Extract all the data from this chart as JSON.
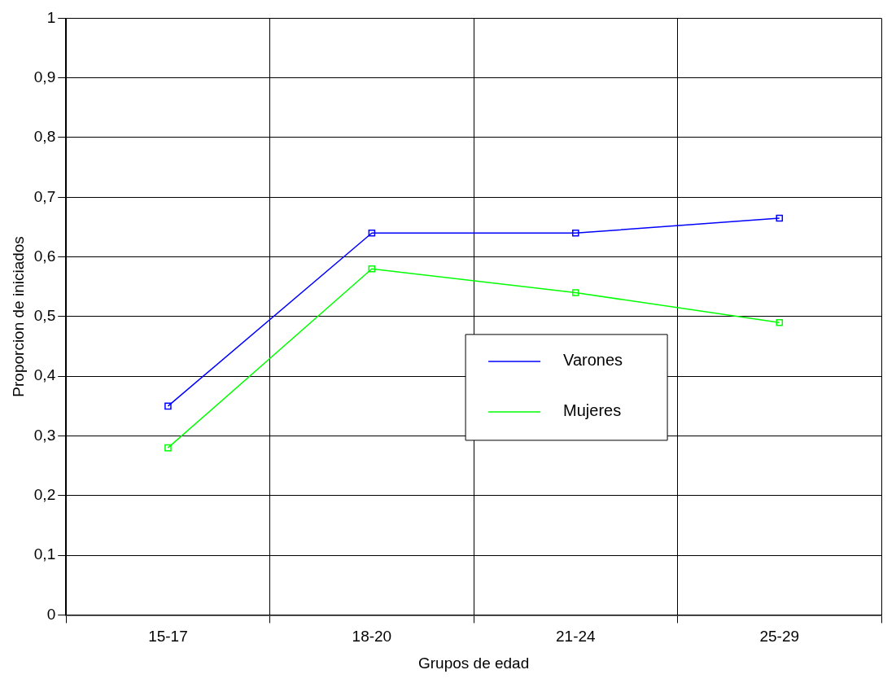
{
  "chart_data": {
    "type": "line",
    "xlabel": "Grupos de edad",
    "ylabel": "Proporcion de iniciados",
    "categories": [
      "15-17",
      "18-20",
      "21-24",
      "25-29"
    ],
    "series": [
      {
        "name": "Varones",
        "color": "#0000ff",
        "values": [
          0.35,
          0.64,
          0.64,
          0.665
        ]
      },
      {
        "name": "Mujeres",
        "color": "#00ff00",
        "values": [
          0.28,
          0.58,
          0.54,
          0.49
        ]
      }
    ],
    "ylim": [
      0,
      1
    ],
    "yticks": [
      {
        "value": 0,
        "label": "0"
      },
      {
        "value": 0.1,
        "label": "0,1"
      },
      {
        "value": 0.2,
        "label": "0,2"
      },
      {
        "value": 0.3,
        "label": "0,3"
      },
      {
        "value": 0.4,
        "label": "0,4"
      },
      {
        "value": 0.5,
        "label": "0,5"
      },
      {
        "value": 0.6,
        "label": "0,6"
      },
      {
        "value": 0.7,
        "label": "0,7"
      },
      {
        "value": 0.8,
        "label": "0,8"
      },
      {
        "value": 0.9,
        "label": "0,9"
      },
      {
        "value": 1,
        "label": "1"
      }
    ],
    "grid": true,
    "legend": "right",
    "marker": "square",
    "line_style": "solid"
  }
}
